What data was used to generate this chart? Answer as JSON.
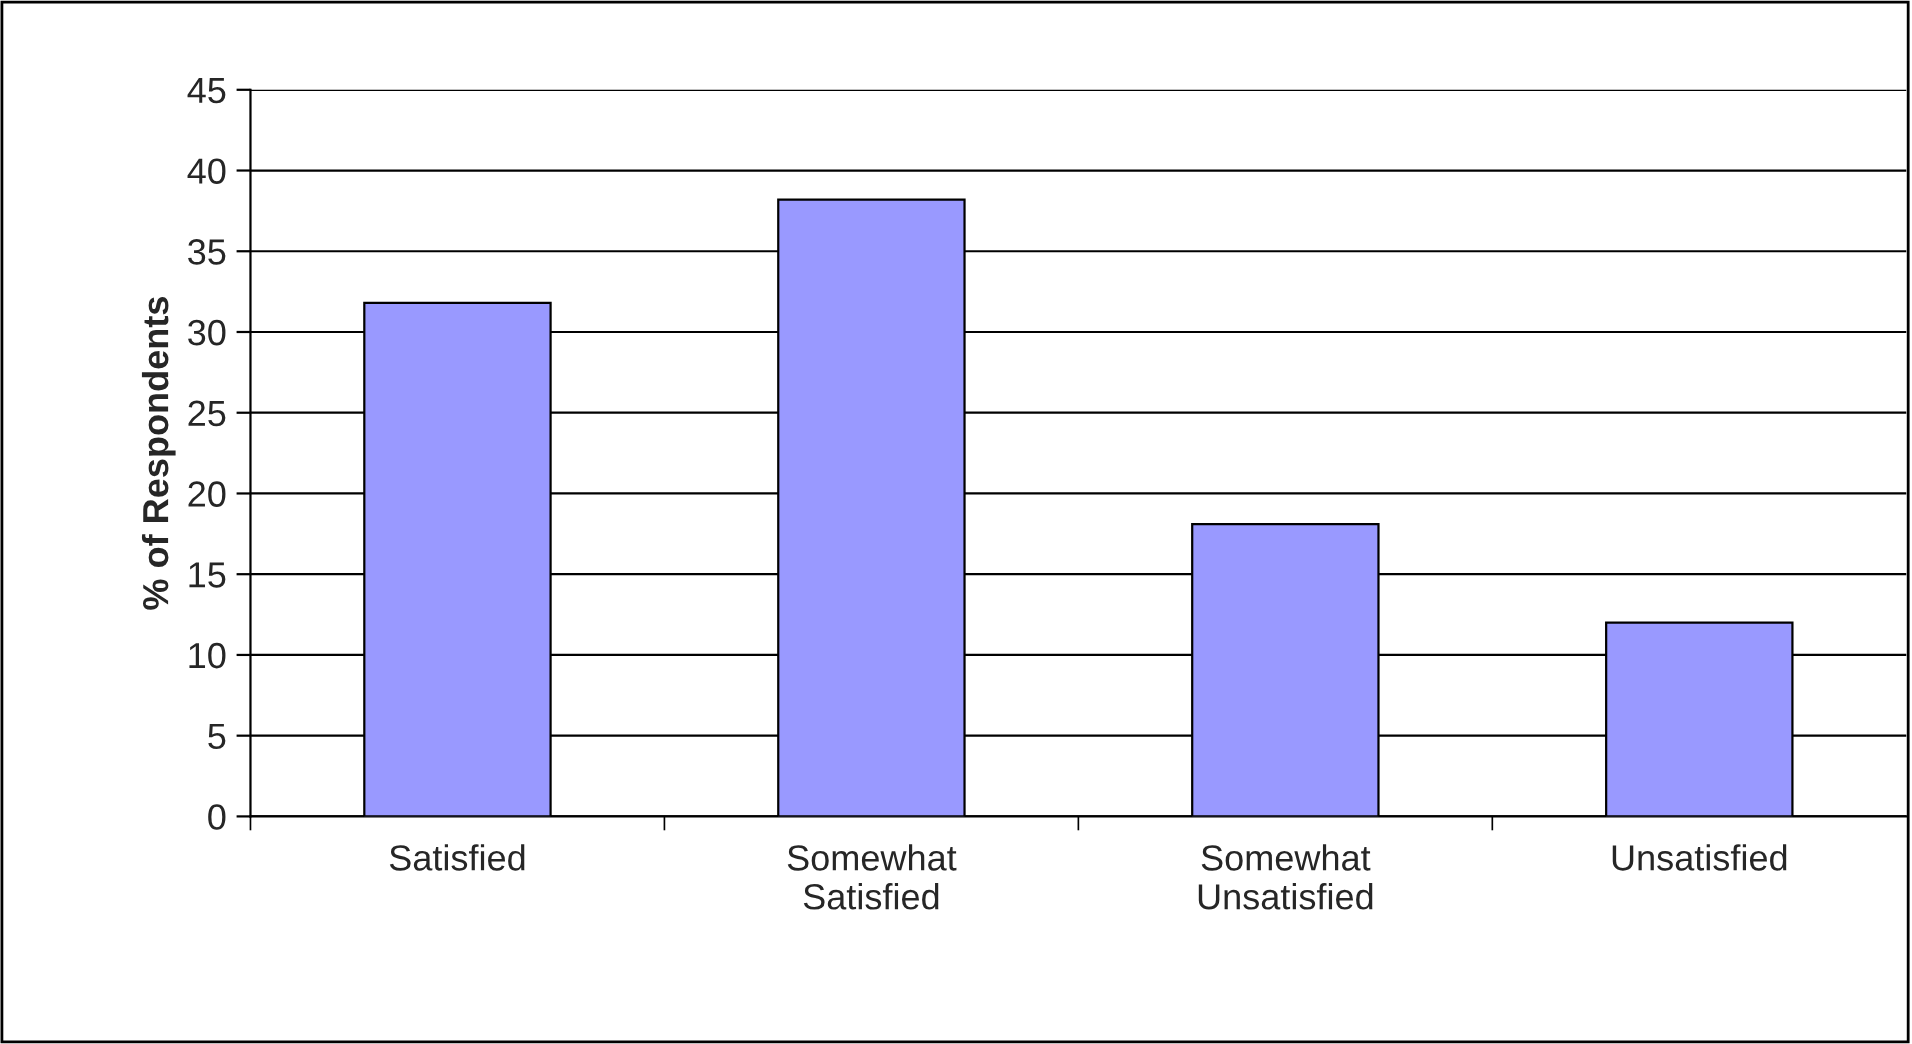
{
  "chart_data": {
    "type": "bar",
    "ylabel": "% of Respondents",
    "categories": [
      "Satisfied",
      "Somewhat\nSatisfied",
      "Somewhat\nUnsatisfied",
      "Unsatisfied"
    ],
    "values": [
      31.8,
      38.2,
      18.1,
      12.0
    ],
    "color": "#9999ff",
    "ylim": [
      0,
      45
    ],
    "yticks": [
      0,
      5,
      10,
      15,
      20,
      25,
      30,
      35,
      40,
      45
    ],
    "grid": "y"
  }
}
